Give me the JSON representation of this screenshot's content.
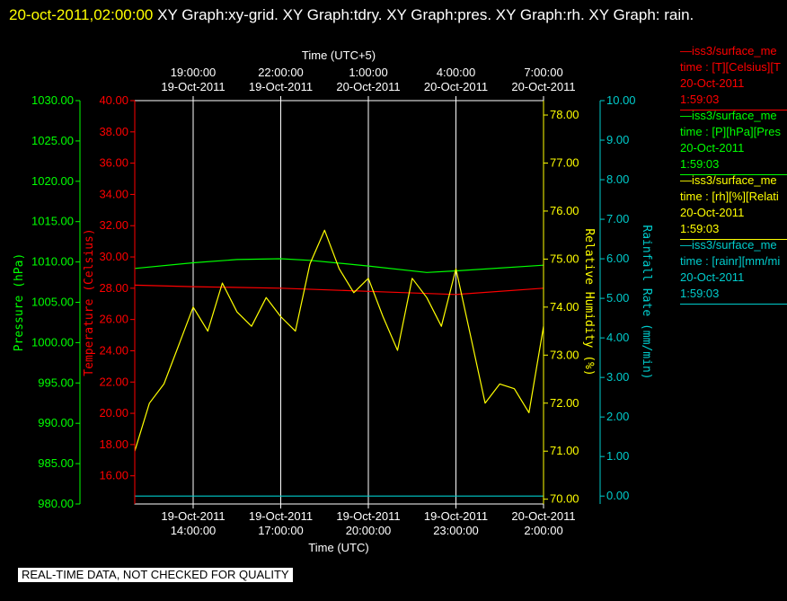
{
  "title": {
    "timestamp": "20-oct-2011,02:00:00",
    "text": "XY Graph:xy-grid.  XY Graph:tdry.  XY Graph:pres.  XY Graph:rh.  XY Graph: rain."
  },
  "disclaimer": "REAL-TIME DATA, NOT CHECKED FOR QUALITY",
  "colors": {
    "background": "#000000",
    "grid": "#ffffff",
    "temperature": "#ff0000",
    "pressure": "#00ff00",
    "humidity": "#ffff00",
    "rain": "#00cccc",
    "title_timestamp": "#ffff00"
  },
  "legend": [
    {
      "line1": "—iss3/surface_me",
      "line2": "time : [T][Celsius][T",
      "line3": "20-Oct-2011",
      "line4": "1:59:03",
      "color": "#ff0000"
    },
    {
      "line1": "—iss3/surface_me",
      "line2": "time : [P][hPa][Pres",
      "line3": "20-Oct-2011",
      "line4": "1:59:03",
      "color": "#00ff00"
    },
    {
      "line1": "—iss3/surface_me",
      "line2": "time : [rh][%][Relati",
      "line3": "20-Oct-2011",
      "line4": "1:59:03",
      "color": "#ffff00"
    },
    {
      "line1": "—iss3/surface_me",
      "line2": "time : [rainr][mm/mi",
      "line3": "20-Oct-2011",
      "line4": "1:59:03",
      "color": "#00cccc"
    }
  ],
  "chart_data": {
    "type": "line",
    "xlabel_top": "Time (UTC+5)",
    "xlabel_bottom": "Time (UTC)",
    "x_range": [
      "19-Oct-2011 12:00:00",
      "20-Oct-2011 02:00:00"
    ],
    "grid": true,
    "top_ticks": [
      {
        "time": "19:00:00",
        "date": "19-Oct-2011"
      },
      {
        "time": "22:00:00",
        "date": "19-Oct-2011"
      },
      {
        "time": "1:00:00",
        "date": "20-Oct-2011"
      },
      {
        "time": "4:00:00",
        "date": "20-Oct-2011"
      },
      {
        "time": "7:00:00",
        "date": "20-Oct-2011"
      }
    ],
    "bottom_ticks": [
      {
        "date": "19-Oct-2011",
        "time": "14:00:00"
      },
      {
        "date": "19-Oct-2011",
        "time": "17:00:00"
      },
      {
        "date": "19-Oct-2011",
        "time": "20:00:00"
      },
      {
        "date": "19-Oct-2011",
        "time": "23:00:00"
      },
      {
        "date": "20-Oct-2011",
        "time": "2:00:00"
      }
    ],
    "axes": {
      "pressure": {
        "label": "Pressure (hPa)",
        "range": [
          980,
          1030
        ],
        "ticks": [
          "980.00",
          "985.00",
          "990.00",
          "995.00",
          "1000.00",
          "1005.00",
          "1010.00",
          "1015.00",
          "1020.00",
          "1025.00",
          "1030.00"
        ]
      },
      "temperature": {
        "label": "Temperature (Celsius)",
        "range": [
          14.2,
          40
        ],
        "ticks": [
          "16.00",
          "18.00",
          "20.00",
          "22.00",
          "24.00",
          "26.00",
          "28.00",
          "30.00",
          "32.00",
          "34.00",
          "36.00",
          "38.00",
          "40.00"
        ]
      },
      "humidity": {
        "label": "Relative Humidity (%)",
        "range": [
          69.9,
          78.3
        ],
        "ticks": [
          "70.00",
          "71.00",
          "72.00",
          "73.00",
          "74.00",
          "75.00",
          "76.00",
          "77.00",
          "78.00"
        ]
      },
      "rain": {
        "label": "Rainfall Rate (mm/min)",
        "range": [
          -0.2,
          10
        ],
        "ticks": [
          "0.00",
          "1.00",
          "2.00",
          "3.00",
          "4.00",
          "5.00",
          "6.00",
          "7.00",
          "8.00",
          "9.00",
          "10.00"
        ]
      }
    },
    "series": [
      {
        "name": "iss3/surface_met time : [T][Celsius]",
        "axis": "temperature",
        "x": [
          "19-Oct-2011 12:00",
          "19-Oct-2011 14:00",
          "19-Oct-2011 17:00",
          "19-Oct-2011 20:00",
          "19-Oct-2011 23:00",
          "20-Oct-2011 02:00"
        ],
        "y": [
          28.2,
          28.1,
          28.0,
          27.8,
          27.6,
          28.0
        ]
      },
      {
        "name": "iss3/surface_met time : [P][hPa]",
        "axis": "pressure",
        "x": [
          "19-Oct-2011 12:00",
          "19-Oct-2011 14:00",
          "19-Oct-2011 15:30",
          "19-Oct-2011 17:00",
          "19-Oct-2011 18:00",
          "19-Oct-2011 20:00",
          "19-Oct-2011 22:00",
          "19-Oct-2011 23:00",
          "20-Oct-2011 02:00"
        ],
        "y": [
          1009.2,
          1009.9,
          1010.3,
          1010.4,
          1010.2,
          1009.5,
          1008.7,
          1008.9,
          1009.6
        ]
      },
      {
        "name": "iss3/surface_met time : [rh][%]",
        "axis": "humidity",
        "x": [
          "19-Oct-2011 12:00",
          "19-Oct-2011 12:30",
          "19-Oct-2011 13:00",
          "19-Oct-2011 13:30",
          "19-Oct-2011 14:00",
          "19-Oct-2011 14:30",
          "19-Oct-2011 15:00",
          "19-Oct-2011 15:30",
          "19-Oct-2011 16:00",
          "19-Oct-2011 16:30",
          "19-Oct-2011 17:00",
          "19-Oct-2011 17:30",
          "19-Oct-2011 18:00",
          "19-Oct-2011 18:30",
          "19-Oct-2011 19:00",
          "19-Oct-2011 19:30",
          "19-Oct-2011 20:00",
          "19-Oct-2011 20:30",
          "19-Oct-2011 21:00",
          "19-Oct-2011 21:30",
          "19-Oct-2011 22:00",
          "19-Oct-2011 22:30",
          "19-Oct-2011 23:00",
          "19-Oct-2011 23:30",
          "20-Oct-2011 00:00",
          "20-Oct-2011 00:30",
          "20-Oct-2011 01:00",
          "20-Oct-2011 01:30",
          "20-Oct-2011 02:00"
        ],
        "y": [
          71.0,
          72.0,
          72.4,
          73.2,
          74.0,
          73.5,
          74.5,
          73.9,
          73.6,
          74.2,
          73.8,
          73.5,
          74.9,
          75.6,
          74.8,
          74.3,
          74.6,
          73.8,
          73.1,
          74.6,
          74.2,
          73.6,
          74.8,
          73.4,
          72.0,
          72.4,
          72.3,
          71.8,
          73.6
        ]
      },
      {
        "name": "iss3/surface_met time : [rainr][mm/min]",
        "axis": "rain",
        "x": [
          "19-Oct-2011 12:00",
          "20-Oct-2011 02:00"
        ],
        "y": [
          0.0,
          0.0
        ]
      }
    ]
  }
}
